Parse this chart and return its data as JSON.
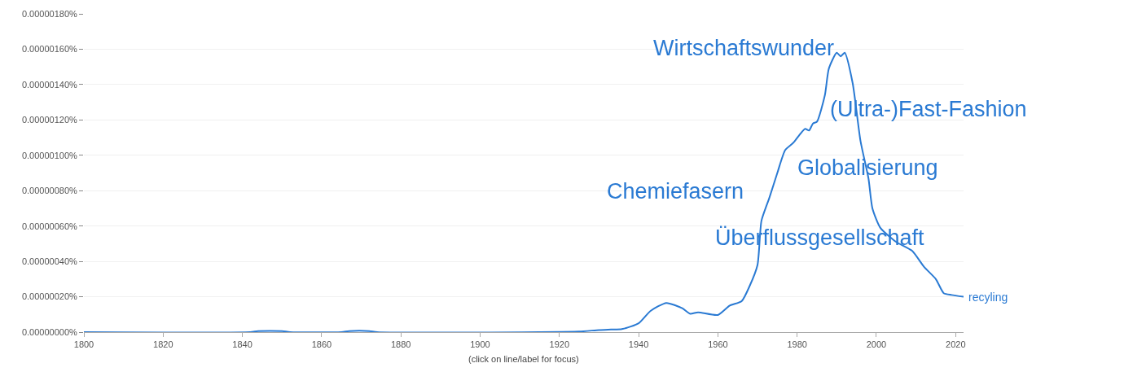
{
  "chart_data": {
    "type": "line",
    "x": [
      1800,
      1842,
      1844,
      1850,
      1852,
      1865,
      1867,
      1872,
      1874,
      1915,
      1925,
      1930,
      1933,
      1936,
      1940,
      1943,
      1947,
      1951,
      1953,
      1955,
      1960,
      1963,
      1966,
      1968,
      1970,
      1971,
      1973,
      1975,
      1977,
      1979,
      1982,
      1983,
      1984,
      1985,
      1987,
      1988,
      1990,
      1991,
      1992,
      1994,
      1996,
      1998,
      1999,
      2001,
      2005,
      2009,
      2012,
      2015,
      2017,
      2019,
      2022
    ],
    "series": [
      {
        "name": "recyling",
        "color": "#2a7ad3",
        "values": [
          0,
          0,
          6e-09,
          6e-09,
          0,
          0,
          6e-09,
          6e-09,
          0,
          0,
          3e-09,
          1.2e-08,
          1.5e-08,
          1.8e-08,
          5e-08,
          1.2e-07,
          1.65e-07,
          1.35e-07,
          1.04e-07,
          1.12e-07,
          9.7e-08,
          1.5e-07,
          1.75e-07,
          2.6e-07,
          3.8e-07,
          6.3e-07,
          7.6e-07,
          9e-07,
          1.03e-06,
          1.07e-06,
          1.15e-06,
          1.14e-06,
          1.18e-06,
          1.19e-06,
          1.34e-06,
          1.49e-06,
          1.58e-06,
          1.56e-06,
          1.58e-06,
          1.41e-06,
          1.08e-06,
          8.7e-07,
          7e-07,
          5.9e-07,
          5.1e-07,
          4.6e-07,
          3.7e-07,
          3e-07,
          2.2e-07,
          2.1e-07,
          2e-07
        ]
      }
    ],
    "xlim": [
      1800,
      2022
    ],
    "ylim": [
      0,
      1.8e-06
    ],
    "xticks": [
      1800,
      1820,
      1840,
      1860,
      1880,
      1900,
      1920,
      1940,
      1960,
      1980,
      2000,
      2020
    ],
    "yticks": [
      {
        "value": 0,
        "label": "0.00000000%"
      },
      {
        "value": 2e-07,
        "label": "0.00000020%"
      },
      {
        "value": 4e-07,
        "label": "0.00000040%"
      },
      {
        "value": 6e-07,
        "label": "0.00000060%"
      },
      {
        "value": 8e-07,
        "label": "0.00000080%"
      },
      {
        "value": 1e-06,
        "label": "0.00000100%"
      },
      {
        "value": 1.2e-06,
        "label": "0.00000120%"
      },
      {
        "value": 1.4e-06,
        "label": "0.00000140%"
      },
      {
        "value": 1.6e-06,
        "label": "0.00000160%"
      },
      {
        "value": 1.8e-06,
        "label": "0.00000180%"
      }
    ],
    "grid": "y",
    "legend": false,
    "marker": "none",
    "line_style": "solid",
    "annotations": [
      "Wirtschaftswunder",
      "(Ultra-)Fast-Fashion",
      "Globalisierung",
      "Chemiefasern",
      "Überflussgesellschaft",
      "(click on line/label for focus)"
    ]
  }
}
